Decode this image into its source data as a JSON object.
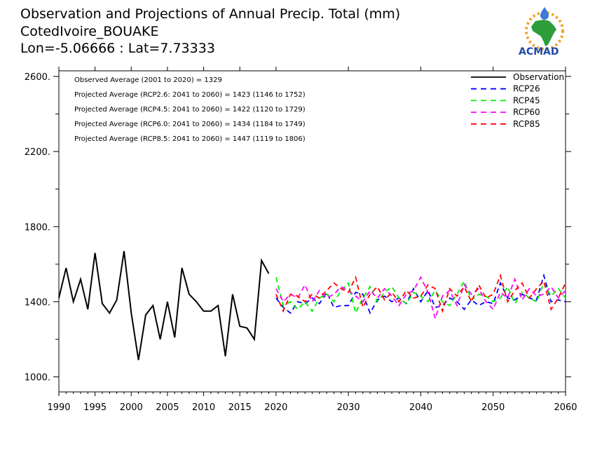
{
  "header": {
    "title": "Observation and Projections of Annual Precip. Total (mm)",
    "station": "CotedIvoire_BOUAKE",
    "coords": "Lon=-5.06666 : Lat=7.73333"
  },
  "logo": {
    "text": "ACMAD"
  },
  "stats": [
    "Observed Average (2001 to 2020) = 1329",
    "Projected Average (RCP2.6: 2041 to 2060) = 1423 (1146 to 1752)",
    "Projected Average (RCP4.5: 2041 to 2060) = 1422 (1120 to 1729)",
    "Projected Average (RCP6.0: 2041 to 2060) = 1434 (1184 to 1749)",
    "Projected Average (RCP8.5: 2041 to 2060) = 1447 (1119 to 1806)"
  ],
  "chart_data": {
    "type": "line",
    "title": "Observation and Projections of Annual Precip. Total (mm)",
    "xlabel": "",
    "ylabel": "",
    "xlim": [
      1990,
      2060
    ],
    "ylim": [
      920,
      2630
    ],
    "x_ticks": [
      1990,
      1995,
      2000,
      2005,
      2010,
      2015,
      2020,
      2030,
      2040,
      2050,
      2060
    ],
    "y_ticks": [
      1000,
      1400,
      1800,
      2200,
      2600
    ],
    "y_tick_labels": [
      "1000.",
      "1400.",
      "1800.",
      "2200.",
      "2600."
    ],
    "legend_position": "top-right",
    "grid": false,
    "series": [
      {
        "name": "Observation",
        "color": "#000000",
        "style": "solid",
        "x": [
          1990,
          1991,
          1992,
          1993,
          1994,
          1995,
          1996,
          1997,
          1998,
          1999,
          2000,
          2001,
          2002,
          2003,
          2004,
          2005,
          2006,
          2007,
          2008,
          2009,
          2010,
          2011,
          2012,
          2013,
          2014,
          2015,
          2016,
          2017,
          2018,
          2019
        ],
        "values": [
          1420,
          1580,
          1400,
          1520,
          1360,
          1660,
          1390,
          1340,
          1410,
          1670,
          1340,
          1090,
          1330,
          1380,
          1200,
          1400,
          1210,
          1580,
          1440,
          1400,
          1350,
          1350,
          1380,
          1110,
          1440,
          1270,
          1260,
          1200,
          1620,
          1550
        ]
      },
      {
        "name": "RCP26",
        "color": "#0000ff",
        "style": "dashed",
        "x": [
          2020,
          2021,
          2022,
          2023,
          2024,
          2025,
          2026,
          2027,
          2028,
          2029,
          2030,
          2031,
          2032,
          2033,
          2034,
          2035,
          2036,
          2037,
          2038,
          2039,
          2040,
          2041,
          2042,
          2043,
          2044,
          2045,
          2046,
          2047,
          2048,
          2049,
          2050,
          2051,
          2052,
          2053,
          2054,
          2055,
          2056,
          2057,
          2058,
          2059,
          2060
        ],
        "values": [
          1420,
          1370,
          1340,
          1400,
          1390,
          1420,
          1390,
          1450,
          1370,
          1380,
          1380,
          1450,
          1440,
          1340,
          1410,
          1430,
          1400,
          1420,
          1390,
          1470,
          1400,
          1460,
          1370,
          1380,
          1420,
          1400,
          1360,
          1410,
          1380,
          1400,
          1390,
          1500,
          1420,
          1410,
          1440,
          1420,
          1410,
          1540,
          1400,
          1410,
          1400
        ]
      },
      {
        "name": "RCP45",
        "color": "#00ee00",
        "style": "dashed",
        "x": [
          2020,
          2021,
          2022,
          2023,
          2024,
          2025,
          2026,
          2027,
          2028,
          2029,
          2030,
          2031,
          2032,
          2033,
          2034,
          2035,
          2036,
          2037,
          2038,
          2039,
          2040,
          2041,
          2042,
          2043,
          2044,
          2045,
          2046,
          2047,
          2048,
          2049,
          2050,
          2051,
          2052,
          2053,
          2054,
          2055,
          2056,
          2057,
          2058,
          2059,
          2060
        ],
        "values": [
          1530,
          1380,
          1400,
          1360,
          1400,
          1350,
          1420,
          1440,
          1400,
          1460,
          1500,
          1340,
          1420,
          1480,
          1400,
          1450,
          1480,
          1420,
          1390,
          1450,
          1430,
          1400,
          1460,
          1400,
          1380,
          1440,
          1510,
          1410,
          1440,
          1430,
          1400,
          1420,
          1480,
          1390,
          1450,
          1420,
          1400,
          1500,
          1430,
          1470,
          1420
        ]
      },
      {
        "name": "RCP60",
        "color": "#ff00ff",
        "style": "dashed",
        "x": [
          2020,
          2021,
          2022,
          2023,
          2024,
          2025,
          2026,
          2027,
          2028,
          2029,
          2030,
          2031,
          2032,
          2033,
          2034,
          2035,
          2036,
          2037,
          2038,
          2039,
          2040,
          2041,
          2042,
          2043,
          2044,
          2045,
          2046,
          2047,
          2048,
          2049,
          2050,
          2051,
          2052,
          2053,
          2054,
          2055,
          2056,
          2057,
          2058,
          2059,
          2060
        ],
        "values": [
          1470,
          1400,
          1440,
          1420,
          1490,
          1400,
          1460,
          1420,
          1440,
          1480,
          1460,
          1430,
          1400,
          1460,
          1420,
          1470,
          1430,
          1380,
          1440,
          1460,
          1530,
          1450,
          1310,
          1430,
          1460,
          1380,
          1490,
          1440,
          1470,
          1400,
          1360,
          1450,
          1420,
          1520,
          1410,
          1470,
          1430,
          1440,
          1480,
          1420,
          1460
        ]
      },
      {
        "name": "RCP85",
        "color": "#ff0000",
        "style": "dashed",
        "x": [
          2020,
          2021,
          2022,
          2023,
          2024,
          2025,
          2026,
          2027,
          2028,
          2029,
          2030,
          2031,
          2032,
          2033,
          2034,
          2035,
          2036,
          2037,
          2038,
          2039,
          2040,
          2041,
          2042,
          2043,
          2044,
          2045,
          2046,
          2047,
          2048,
          2049,
          2050,
          2051,
          2052,
          2053,
          2054,
          2055,
          2056,
          2057,
          2058,
          2059,
          2060
        ],
        "values": [
          1440,
          1350,
          1440,
          1430,
          1400,
          1440,
          1420,
          1460,
          1500,
          1470,
          1450,
          1530,
          1370,
          1440,
          1480,
          1410,
          1450,
          1400,
          1460,
          1420,
          1430,
          1490,
          1470,
          1350,
          1470,
          1430,
          1480,
          1400,
          1490,
          1420,
          1440,
          1540,
          1400,
          1460,
          1500,
          1420,
          1470,
          1510,
          1360,
          1420,
          1500
        ]
      }
    ]
  }
}
